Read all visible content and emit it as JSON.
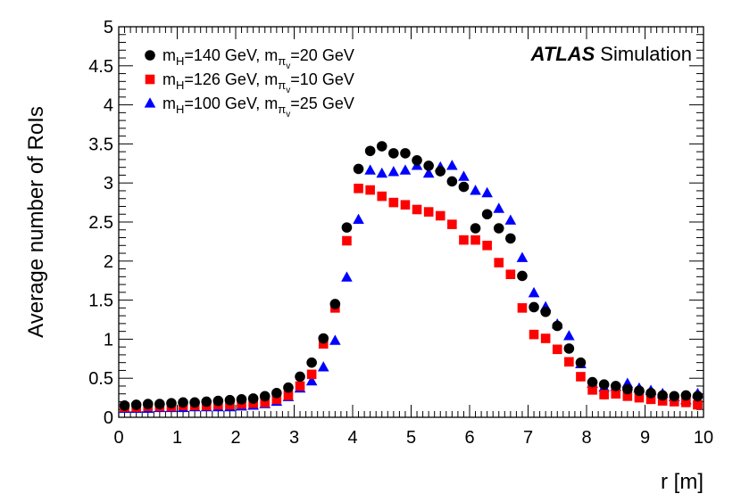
{
  "chart_data": {
    "type": "scatter",
    "xlabel": "r [m]",
    "ylabel": "Average number of RoIs",
    "xlim": [
      0,
      10
    ],
    "ylim": [
      0,
      5
    ],
    "xticks": [
      "0",
      "1",
      "2",
      "3",
      "4",
      "5",
      "6",
      "7",
      "8",
      "9",
      "10"
    ],
    "yticks": [
      "0",
      "0.5",
      "1",
      "1.5",
      "2",
      "2.5",
      "3",
      "3.5",
      "4",
      "4.5",
      "5"
    ],
    "label_atlas": "ATLAS",
    "label_sim": "Simulation",
    "legend_position": "top-left",
    "x": [
      0.1,
      0.3,
      0.5,
      0.7,
      0.9,
      1.1,
      1.3,
      1.5,
      1.7,
      1.9,
      2.1,
      2.3,
      2.5,
      2.7,
      2.9,
      3.1,
      3.3,
      3.5,
      3.7,
      3.9,
      4.1,
      4.3,
      4.5,
      4.7,
      4.9,
      5.1,
      5.3,
      5.5,
      5.7,
      5.9,
      6.1,
      6.3,
      6.5,
      6.7,
      6.9,
      7.1,
      7.3,
      7.5,
      7.7,
      7.9,
      8.1,
      8.3,
      8.5,
      8.7,
      8.9,
      9.1,
      9.3,
      9.5,
      9.7,
      9.9
    ],
    "series": [
      {
        "name": "mH=140 GeV, mπv=20 GeV",
        "legend": {
          "a": "m",
          "asub": "H",
          "b": "=140 GeV, m",
          "bsub": "π",
          "bsubsub": "v",
          "c": "=20 GeV"
        },
        "color": "#000000",
        "marker": "circle",
        "values": [
          0.15,
          0.16,
          0.17,
          0.17,
          0.18,
          0.19,
          0.19,
          0.2,
          0.21,
          0.22,
          0.23,
          0.24,
          0.27,
          0.31,
          0.38,
          0.52,
          0.7,
          1.01,
          1.45,
          2.43,
          3.18,
          3.41,
          3.47,
          3.38,
          3.38,
          3.29,
          3.22,
          3.15,
          3.02,
          2.95,
          2.42,
          2.6,
          2.42,
          2.29,
          1.81,
          1.41,
          1.35,
          1.17,
          0.88,
          0.7,
          0.45,
          0.42,
          0.4,
          0.36,
          0.34,
          0.31,
          0.28,
          0.27,
          0.28,
          0.27
        ]
      },
      {
        "name": "mH=126 GeV, mπv=10 GeV",
        "legend": {
          "a": "m",
          "asub": "H",
          "b": "=126 GeV, m",
          "bsub": "π",
          "bsubsub": "v",
          "c": "=10 GeV"
        },
        "color": "#ff0000",
        "marker": "square",
        "values": [
          0.13,
          0.13,
          0.14,
          0.14,
          0.14,
          0.15,
          0.15,
          0.15,
          0.16,
          0.16,
          0.17,
          0.18,
          0.19,
          0.23,
          0.28,
          0.4,
          0.55,
          0.94,
          1.4,
          2.26,
          2.93,
          2.91,
          2.83,
          2.75,
          2.72,
          2.66,
          2.63,
          2.58,
          2.47,
          2.27,
          2.27,
          2.2,
          1.98,
          1.83,
          1.4,
          1.06,
          1.01,
          0.87,
          0.71,
          0.52,
          0.35,
          0.29,
          0.3,
          0.27,
          0.25,
          0.23,
          0.21,
          0.2,
          0.19,
          0.16
        ]
      },
      {
        "name": "mH=100 GeV, mπv=25 GeV",
        "legend": {
          "a": "m",
          "asub": "H",
          "b": "=100 GeV, m",
          "bsub": "π",
          "bsubsub": "v",
          "c": "=25 GeV"
        },
        "color": "#0000ff",
        "marker": "triangle",
        "values": [
          0.11,
          0.11,
          0.11,
          0.12,
          0.12,
          0.12,
          0.13,
          0.13,
          0.13,
          0.13,
          0.14,
          0.15,
          0.17,
          0.2,
          0.26,
          0.37,
          0.46,
          0.64,
          0.98,
          1.79,
          2.53,
          3.16,
          3.12,
          3.14,
          3.16,
          3.22,
          3.12,
          3.2,
          3.22,
          3.08,
          2.9,
          2.87,
          2.67,
          2.52,
          2.04,
          1.59,
          1.41,
          1.19,
          1.04,
          0.68,
          0.43,
          0.38,
          0.39,
          0.43,
          0.37,
          0.34,
          0.3,
          0.26,
          0.22,
          0.3
        ]
      }
    ]
  }
}
